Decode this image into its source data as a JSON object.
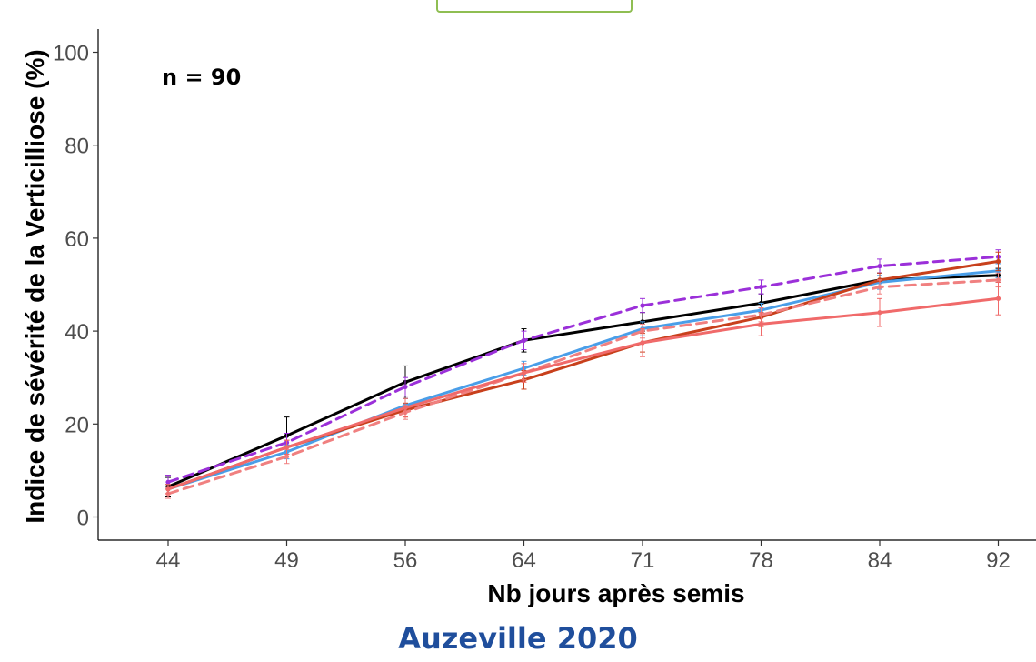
{
  "caption": "Auzeville 2020",
  "chart_data": {
    "type": "line",
    "title": "",
    "annotation": "n = 90",
    "xlabel": "Nb jours après semis",
    "ylabel": "Indice de sévérité de la Verticilliose (%)",
    "categories": [
      "44",
      "49",
      "56",
      "64",
      "71",
      "78",
      "84",
      "92"
    ],
    "yticks": [
      "0",
      "20",
      "40",
      "60",
      "80",
      "100"
    ],
    "ylim": [
      -5,
      105
    ],
    "grid": false,
    "legend": "none",
    "series": [
      {
        "color": "#000000",
        "dash": false,
        "values": [
          6.5,
          17.5,
          29,
          38,
          42,
          46,
          51,
          52
        ],
        "err": [
          2,
          4,
          3.5,
          2.5,
          2,
          2,
          1.5,
          1.5
        ]
      },
      {
        "color": "#9b30d9",
        "dash": true,
        "values": [
          7.5,
          16,
          28,
          38,
          45.5,
          49.5,
          54,
          56
        ],
        "err": [
          1.5,
          2,
          2,
          2,
          1.5,
          1.5,
          1.5,
          1.5
        ]
      },
      {
        "color": "#4a9ee8",
        "dash": false,
        "values": [
          6,
          14,
          24,
          32,
          40.5,
          44.5,
          50.5,
          53
        ],
        "err": [
          1,
          1.5,
          1.5,
          1.5,
          1.5,
          1.5,
          1.5,
          1.5
        ]
      },
      {
        "color": "#c8401c",
        "dash": false,
        "values": [
          6,
          15,
          23,
          29.5,
          37.5,
          43,
          51,
          55
        ],
        "err": [
          1,
          1.5,
          1.5,
          2,
          2,
          2,
          1.5,
          2
        ]
      },
      {
        "color": "#f08080",
        "dash": true,
        "values": [
          5,
          13,
          22.5,
          31,
          40,
          43.5,
          49.5,
          51
        ],
        "err": [
          1,
          1.5,
          1.5,
          1.5,
          1.5,
          1.5,
          1.5,
          1.5
        ]
      },
      {
        "color": "#f06a6a",
        "dash": false,
        "values": [
          6,
          15,
          23.5,
          31,
          37.5,
          41.5,
          44,
          47
        ],
        "err": [
          1,
          1.5,
          2,
          2,
          3,
          2.5,
          3,
          3.5
        ]
      }
    ]
  }
}
